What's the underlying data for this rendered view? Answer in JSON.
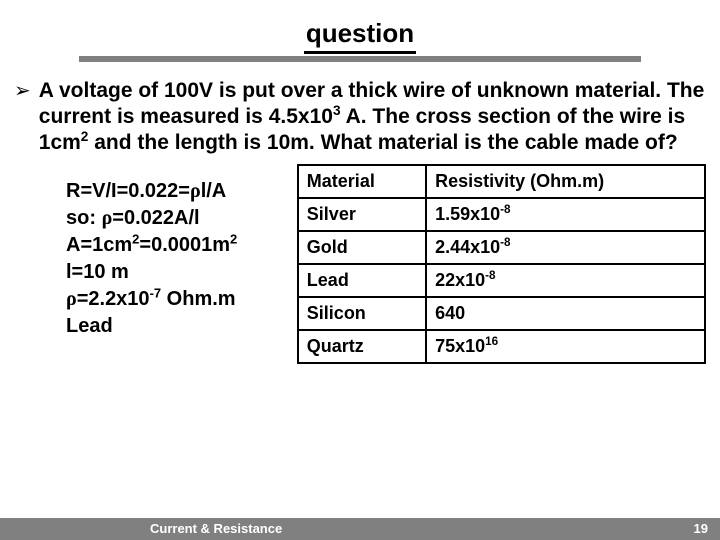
{
  "title": "question",
  "bullet_marker": "➢",
  "question_html": "A voltage of 100V is put over a thick wire of unknown material. The current is measured is 4.5x10<sup>3</sup> A. The cross section of the wire is 1cm<sup>2</sup> and the length is 10m. What material is the cable made of?",
  "work_lines_html": [
    "R=V/I=0.022=<span class='rho'>ρ</span>l/A",
    "so: <span class='rho'>ρ</span>=0.022A/l",
    "A=1cm<sup>2</sup>=0.0001m<sup>2</sup>",
    "l=10 m",
    "<span class='rho'>ρ</span>=2.2x10<sup>-7</sup> Ohm.m",
    "Lead"
  ],
  "table": {
    "header_material": "Material",
    "header_resistivity_html": "Resistivity (Ohm.m)",
    "rows": [
      {
        "material": "Silver",
        "resistivity_html": "1.59x10<sup>-8</sup>"
      },
      {
        "material": "Gold",
        "resistivity_html": "2.44x10<sup>-8</sup>"
      },
      {
        "material": "Lead",
        "resistivity_html": "22x10<sup>-8</sup>"
      },
      {
        "material": "Silicon",
        "resistivity_html": "640"
      },
      {
        "material": "Quartz",
        "resistivity_html": "75x10<sup>16</sup>"
      }
    ]
  },
  "footer": {
    "title": "Current & Resistance",
    "page": "19"
  },
  "colors": {
    "bar_gray": "#808080",
    "text": "#000000",
    "bg": "#ffffff",
    "footer_text": "#ffffff"
  }
}
